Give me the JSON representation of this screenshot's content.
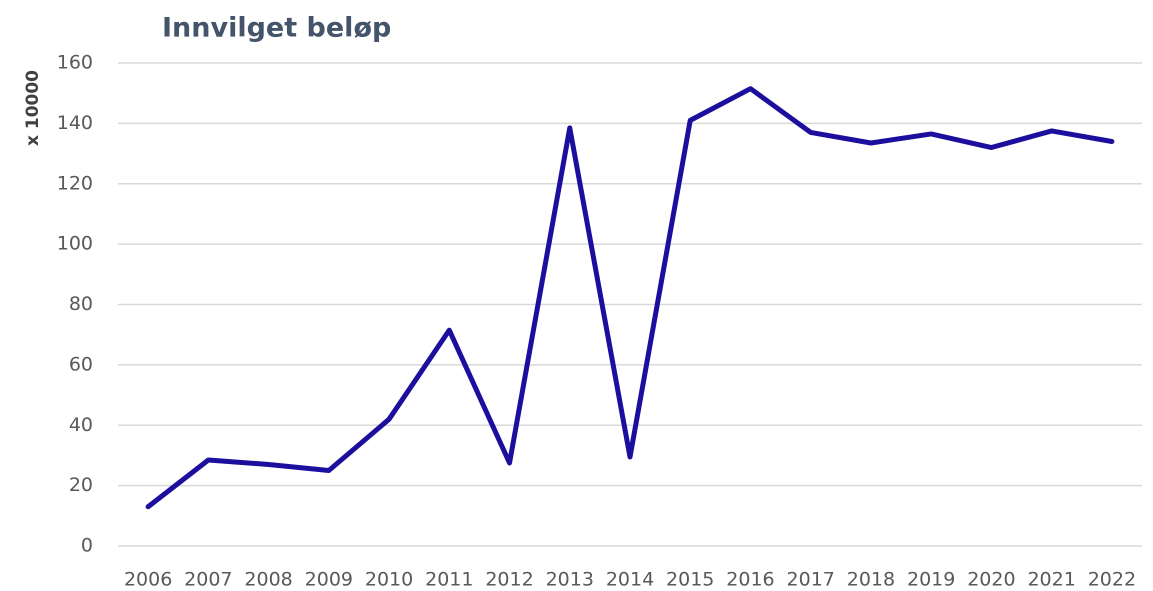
{
  "chart_data": {
    "type": "line",
    "title": "Innvilget beløp",
    "y_label": "x 10000",
    "categories": [
      "2006",
      "2007",
      "2008",
      "2009",
      "2010",
      "2011",
      "2012",
      "2013",
      "2014",
      "2015",
      "2016",
      "2017",
      "2018",
      "2019",
      "2020",
      "2021",
      "2022"
    ],
    "series": [
      {
        "name": "Innvilget beløp",
        "color": "#1c0f9e",
        "values": [
          13,
          28.5,
          27,
          25,
          42,
          71.5,
          27.5,
          138.5,
          29.5,
          141,
          151.5,
          137,
          133.5,
          136.5,
          132,
          137.5,
          134
        ]
      }
    ],
    "ylim": [
      0,
      160
    ],
    "yticks": [
      0,
      20,
      40,
      60,
      80,
      100,
      120,
      140,
      160
    ],
    "grid": true
  }
}
